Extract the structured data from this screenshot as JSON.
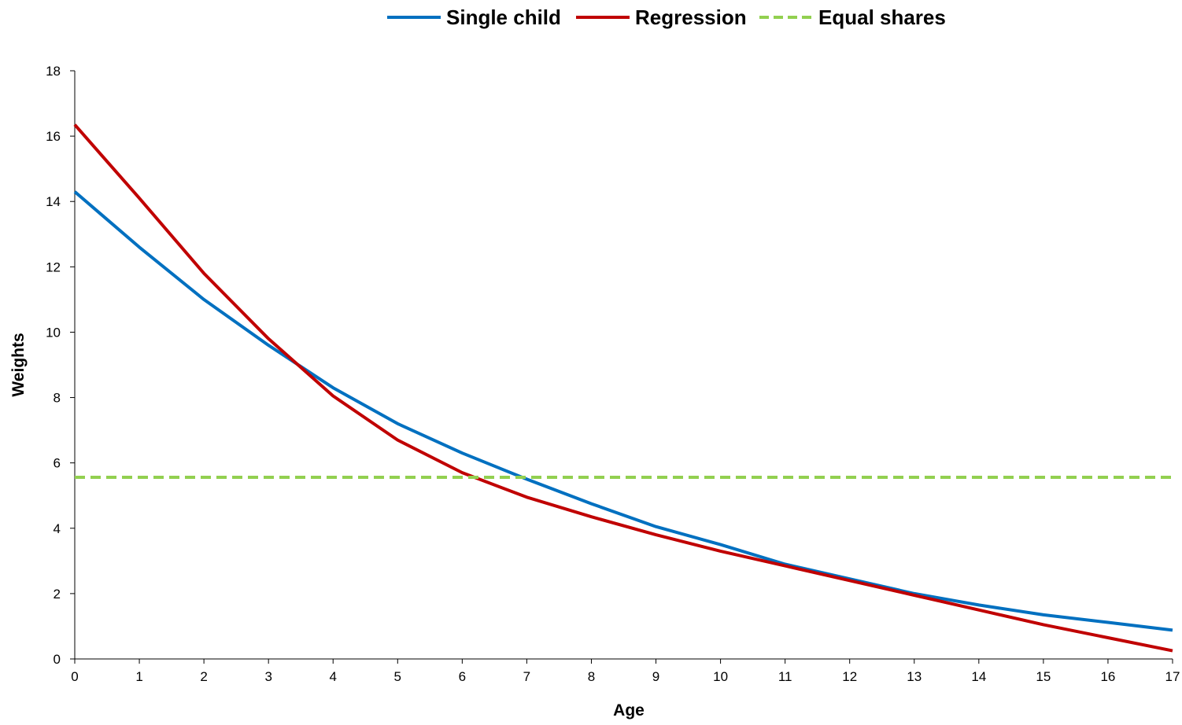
{
  "chart_data": {
    "type": "line",
    "title": "",
    "xlabel": "Age",
    "ylabel": "Weights",
    "x": [
      0,
      1,
      2,
      3,
      4,
      5,
      6,
      7,
      8,
      9,
      10,
      11,
      12,
      13,
      14,
      15,
      16,
      17
    ],
    "xlim": [
      0,
      17
    ],
    "ylim": [
      0,
      18
    ],
    "yticks": [
      0,
      2,
      4,
      6,
      8,
      10,
      12,
      14,
      16,
      18
    ],
    "grid": false,
    "legend_position": "top-center",
    "series": [
      {
        "name": "Single child",
        "color": "#0070c0",
        "style": "solid",
        "values": [
          14.3,
          12.6,
          11.0,
          9.6,
          8.3,
          7.2,
          6.3,
          5.5,
          4.75,
          4.05,
          3.5,
          2.9,
          2.45,
          2.0,
          1.65,
          1.35,
          1.12,
          0.88
        ]
      },
      {
        "name": "Regression",
        "color": "#c00000",
        "style": "solid",
        "values": [
          16.35,
          14.1,
          11.8,
          9.8,
          8.05,
          6.7,
          5.7,
          4.95,
          4.35,
          3.8,
          3.3,
          2.85,
          2.4,
          1.95,
          1.5,
          1.05,
          0.65,
          0.25
        ]
      },
      {
        "name": "Equal shares",
        "color": "#92d050",
        "style": "dashed",
        "values": [
          5.56,
          5.56,
          5.56,
          5.56,
          5.56,
          5.56,
          5.56,
          5.56,
          5.56,
          5.56,
          5.56,
          5.56,
          5.56,
          5.56,
          5.56,
          5.56,
          5.56,
          5.56
        ]
      }
    ]
  }
}
